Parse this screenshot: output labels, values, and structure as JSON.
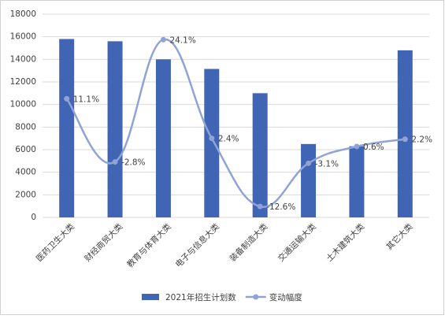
{
  "chart_data": {
    "type": "bar-line",
    "categories": [
      "医药卫生大类",
      "财经商贸大类",
      "教育与体育大类",
      "电子与信息大类",
      "装备制造大类",
      "交通运输大类",
      "土木建筑大类",
      "其它大类"
    ],
    "series": [
      {
        "name": "2021年招生计划数",
        "type": "bar",
        "color": "#4065b4",
        "values": [
          15800,
          15600,
          14000,
          13150,
          11000,
          6500,
          6300,
          14800
        ]
      },
      {
        "name": "变动幅度",
        "type": "line",
        "axis": "y2",
        "color": "#8fa3d6",
        "values": [
          11.1,
          -2.8,
          24.1,
          2.4,
          -12.6,
          -3.1,
          0.6,
          2.2
        ],
        "value_labels": [
          "11.1%",
          "-2.8%",
          "24.1%",
          "2.4%",
          "-12.6%",
          "-3.1%",
          "0.6%",
          "2.2%"
        ]
      }
    ],
    "ylim": [
      0,
      18000
    ],
    "yticks": [
      0,
      2000,
      4000,
      6000,
      8000,
      10000,
      12000,
      14000,
      16000,
      18000
    ],
    "y2lim": [
      -15,
      29.7
    ],
    "grid": true,
    "legend": "bottom"
  }
}
